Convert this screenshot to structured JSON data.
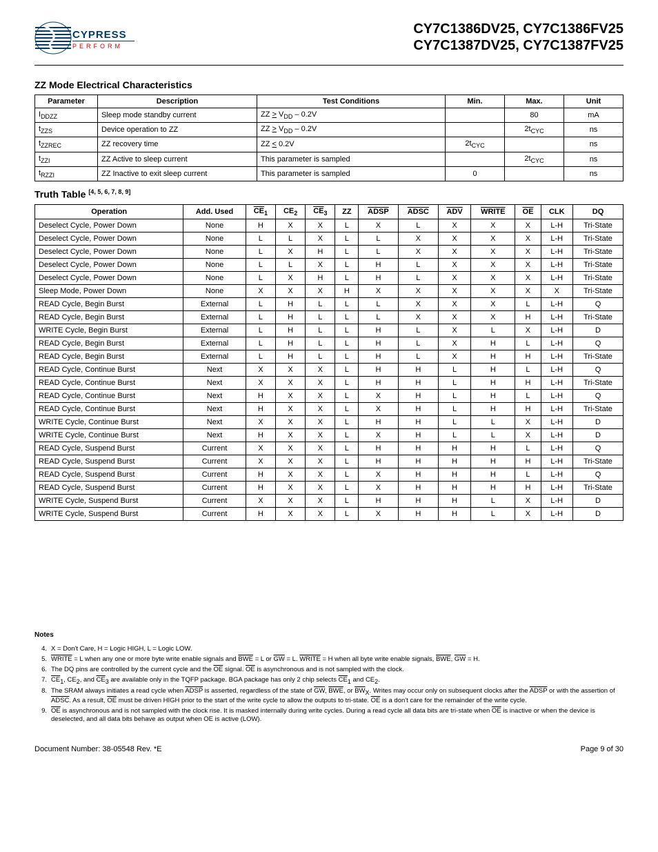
{
  "header": {
    "logo_text": "CYPRESS",
    "logo_sub": "PERFORM",
    "parts_line1": "CY7C1386DV25, CY7C1386FV25",
    "parts_line2": "CY7C1387DV25, CY7C1387FV25"
  },
  "section1_title": "ZZ Mode Electrical Characteristics",
  "table1": {
    "headers": [
      "Parameter",
      "Description",
      "Test Conditions",
      "Min.",
      "Max.",
      "Unit"
    ],
    "rows": [
      {
        "param_html": "I<span class='sub'>DDZZ</span>",
        "desc": "Sleep mode standby current",
        "cond_html": "ZZ <u>&gt;</u> V<span class='sub'>DD</span> – 0.2V",
        "min": "",
        "max": "80",
        "unit": "mA"
      },
      {
        "param_html": "t<span class='sub'>ZZS</span>",
        "desc": "Device operation to ZZ",
        "cond_html": "ZZ <u>&gt;</u> V<span class='sub'>DD</span> – 0.2V",
        "min": "",
        "max_html": "2t<span class='sub'>CYC</span>",
        "unit": "ns"
      },
      {
        "param_html": "t<span class='sub'>ZZREC</span>",
        "desc": "ZZ recovery time",
        "cond_html": "ZZ <u>&lt;</u> 0.2V",
        "min_html": "2t<span class='sub'>CYC</span>",
        "max": "",
        "unit": "ns"
      },
      {
        "param_html": "t<span class='sub'>ZZI</span>",
        "desc": "ZZ Active to sleep current",
        "cond": "This parameter is sampled",
        "min": "",
        "max_html": "2t<span class='sub'>CYC</span>",
        "unit": "ns"
      },
      {
        "param_html": "t<span class='sub'>RZZI</span>",
        "desc": "ZZ Inactive to exit sleep current",
        "cond": "This parameter is sampled",
        "min": "0",
        "max": "",
        "unit": "ns"
      }
    ]
  },
  "truth_title": "Truth Table",
  "truth_refs": "[4, 5, 6, 7, 8, 9]",
  "table2": {
    "headers_html": [
      "Operation",
      "Add. Used",
      "<span class='overline'>CE</span><span class='sub'>1</span>",
      "CE<span class='sub'>2</span>",
      "<span class='overline'>CE</span><span class='sub'>3</span>",
      "ZZ",
      "<span class='overline'>ADSP</span>",
      "<span class='overline'>ADSC</span>",
      "<span class='overline'>ADV</span>",
      "<span class='overline'>WRITE</span>",
      "<span class='overline'>OE</span>",
      "CLK",
      "DQ"
    ],
    "rows": [
      [
        "Deselect Cycle, Power Down",
        "None",
        "H",
        "X",
        "X",
        "L",
        "X",
        "L",
        "X",
        "X",
        "X",
        "L-H",
        "Tri-State"
      ],
      [
        "Deselect Cycle, Power Down",
        "None",
        "L",
        "L",
        "X",
        "L",
        "L",
        "X",
        "X",
        "X",
        "X",
        "L-H",
        "Tri-State"
      ],
      [
        "Deselect Cycle, Power Down",
        "None",
        "L",
        "X",
        "H",
        "L",
        "L",
        "X",
        "X",
        "X",
        "X",
        "L-H",
        "Tri-State"
      ],
      [
        "Deselect Cycle, Power Down",
        "None",
        "L",
        "L",
        "X",
        "L",
        "H",
        "L",
        "X",
        "X",
        "X",
        "L-H",
        "Tri-State"
      ],
      [
        "Deselect Cycle, Power Down",
        "None",
        "L",
        "X",
        "H",
        "L",
        "H",
        "L",
        "X",
        "X",
        "X",
        "L-H",
        "Tri-State"
      ],
      [
        "Sleep Mode, Power Down",
        "None",
        "X",
        "X",
        "X",
        "H",
        "X",
        "X",
        "X",
        "X",
        "X",
        "X",
        "Tri-State"
      ],
      [
        "READ Cycle, Begin Burst",
        "External",
        "L",
        "H",
        "L",
        "L",
        "L",
        "X",
        "X",
        "X",
        "L",
        "L-H",
        "Q"
      ],
      [
        "READ Cycle, Begin Burst",
        "External",
        "L",
        "H",
        "L",
        "L",
        "L",
        "X",
        "X",
        "X",
        "H",
        "L-H",
        "Tri-State"
      ],
      [
        "WRITE Cycle, Begin Burst",
        "External",
        "L",
        "H",
        "L",
        "L",
        "H",
        "L",
        "X",
        "L",
        "X",
        "L-H",
        "D"
      ],
      [
        "READ Cycle, Begin Burst",
        "External",
        "L",
        "H",
        "L",
        "L",
        "H",
        "L",
        "X",
        "H",
        "L",
        "L-H",
        "Q"
      ],
      [
        "READ Cycle, Begin Burst",
        "External",
        "L",
        "H",
        "L",
        "L",
        "H",
        "L",
        "X",
        "H",
        "H",
        "L-H",
        "Tri-State"
      ],
      [
        "READ Cycle, Continue Burst",
        "Next",
        "X",
        "X",
        "X",
        "L",
        "H",
        "H",
        "L",
        "H",
        "L",
        "L-H",
        "Q"
      ],
      [
        "READ Cycle, Continue Burst",
        "Next",
        "X",
        "X",
        "X",
        "L",
        "H",
        "H",
        "L",
        "H",
        "H",
        "L-H",
        "Tri-State"
      ],
      [
        "READ Cycle, Continue Burst",
        "Next",
        "H",
        "X",
        "X",
        "L",
        "X",
        "H",
        "L",
        "H",
        "L",
        "L-H",
        "Q"
      ],
      [
        "READ Cycle, Continue Burst",
        "Next",
        "H",
        "X",
        "X",
        "L",
        "X",
        "H",
        "L",
        "H",
        "H",
        "L-H",
        "Tri-State"
      ],
      [
        "WRITE Cycle, Continue Burst",
        "Next",
        "X",
        "X",
        "X",
        "L",
        "H",
        "H",
        "L",
        "L",
        "X",
        "L-H",
        "D"
      ],
      [
        "WRITE Cycle, Continue Burst",
        "Next",
        "H",
        "X",
        "X",
        "L",
        "X",
        "H",
        "L",
        "L",
        "X",
        "L-H",
        "D"
      ],
      [
        "READ Cycle, Suspend Burst",
        "Current",
        "X",
        "X",
        "X",
        "L",
        "H",
        "H",
        "H",
        "H",
        "L",
        "L-H",
        "Q"
      ],
      [
        "READ Cycle, Suspend Burst",
        "Current",
        "X",
        "X",
        "X",
        "L",
        "H",
        "H",
        "H",
        "H",
        "H",
        "L-H",
        "Tri-State"
      ],
      [
        "READ Cycle, Suspend Burst",
        "Current",
        "H",
        "X",
        "X",
        "L",
        "X",
        "H",
        "H",
        "H",
        "L",
        "L-H",
        "Q"
      ],
      [
        "READ Cycle, Suspend Burst",
        "Current",
        "H",
        "X",
        "X",
        "L",
        "X",
        "H",
        "H",
        "H",
        "H",
        "L-H",
        "Tri-State"
      ],
      [
        "WRITE Cycle, Suspend Burst",
        "Current",
        "X",
        "X",
        "X",
        "L",
        "H",
        "H",
        "H",
        "L",
        "X",
        "L-H",
        "D"
      ],
      [
        "WRITE Cycle, Suspend Burst",
        "Current",
        "H",
        "X",
        "X",
        "L",
        "X",
        "H",
        "H",
        "L",
        "X",
        "L-H",
        "D"
      ]
    ]
  },
  "notes_label": "Notes",
  "notes": [
    {
      "n": "4.",
      "t_html": "X = Don't Care, H = Logic HIGH, L = Logic LOW."
    },
    {
      "n": "5.",
      "t_html": "<span class='overline'>WRITE</span> = L when any one or more byte write enable signals and <span class='overline'>BWE</span> = L or <span class='overline'>GW</span> = L. <span class='overline'>WRITE</span> = H when all byte write enable signals, <span class='overline'>BWE</span>, <span class='overline'>GW</span> = H."
    },
    {
      "n": "6.",
      "t_html": "The DQ pins are controlled by the current cycle and the <span class='overline'>OE</span> signal. <span class='overline'>OE</span> is asynchronous and is not sampled with the clock."
    },
    {
      "n": "7.",
      "t_html": "<span class='overline'>CE</span><span class='sub'>1</span>, CE<span class='sub'>2</span>, and <span class='overline'>CE</span><span class='sub'>3</span> are available only in the TQFP package. BGA package has only 2 chip selects <span class='overline'>CE</span><span class='sub'>1</span> and CE<span class='sub'>2</span>."
    },
    {
      "n": "8.",
      "t_html": "The SRAM always initiates a read cycle when <span class='overline'>ADSP</span> is asserted, regardless of the state of <span class='overline'>GW</span>, <span class='overline'>BWE</span>, or <span class='overline'>BW</span><span class='sub'>X</span>. Writes may occur only on subsequent clocks after the <span class='overline'>ADSP</span> or with the assertion of <span class='overline'>ADSC</span>. As a result, <span class='overline'>OE</span> must be driven HIGH prior to the start of the write cycle to allow the outputs to tri-state. <span class='overline'>OE</span> is a don't care for the remainder of the write cycle."
    },
    {
      "n": "9.",
      "t_html": "<span class='overline'>OE</span> is asynchronous and is not sampled with the clock rise. It is masked internally during write cycles. During a read cycle all data bits are tri-state when <span class='overline'>OE</span> is inactive or when the device is deselected, and all data bits behave as output when OE is active (LOW)."
    }
  ],
  "footer": {
    "left": "Document Number: 38-05548 Rev. *E",
    "right": "Page 9 of 30"
  }
}
